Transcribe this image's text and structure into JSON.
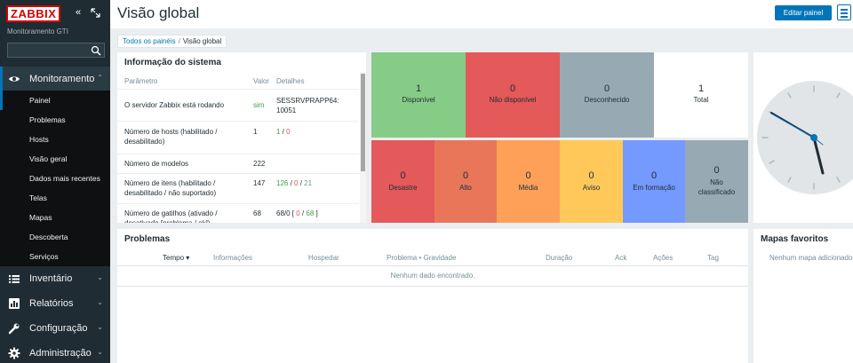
{
  "sidebar": {
    "logo": "ZABBIX",
    "server_name": "Monitoramento GTI",
    "search_value": "",
    "sections": [
      {
        "label": "Monitoramento",
        "icon": "eye-icon"
      },
      {
        "label": "Inventário",
        "icon": "list-icon"
      },
      {
        "label": "Relatórios",
        "icon": "report-icon"
      },
      {
        "label": "Configuração",
        "icon": "wrench-icon"
      },
      {
        "label": "Administração",
        "icon": "gear-icon"
      }
    ],
    "submenu": [
      "Painel",
      "Problemas",
      "Hosts",
      "Visão geral",
      "Dados mais recentes",
      "Telas",
      "Mapas",
      "Descoberta",
      "Serviços"
    ]
  },
  "header": {
    "title": "Visão global",
    "edit_label": "Editar painel"
  },
  "breadcrumb": {
    "root": "Todos os painéis",
    "separator": "/",
    "current": "Visão global"
  },
  "sysinfo": {
    "title": "Informação do sistema",
    "headers": [
      "Parâmetro",
      "Valor",
      "Detalhes"
    ],
    "rows": [
      {
        "param": "O servidor Zabbix está rodando",
        "value": "sim",
        "details": "SESSRVPRAPP64: 10051"
      },
      {
        "param": "Número de hosts (habilitado / desabilitado)",
        "value": "1",
        "d1": "1",
        "d2": "0"
      },
      {
        "param": "Número de modelos",
        "value": "222"
      },
      {
        "param": "Número de itens (habilitado / desabilitado / não suportado)",
        "value": "147",
        "d1": "126",
        "d2": "0",
        "d3": "21"
      },
      {
        "param": "Número de gatilhos (ativado / desativado [problema / ok])",
        "value": "68",
        "d0": "68/0 [",
        "d1": "0",
        "d2": "68",
        "d_end": "]"
      }
    ]
  },
  "host_status": [
    {
      "count": "1",
      "label": "Disponível",
      "color": "#86cc86"
    },
    {
      "count": "0",
      "label": "Não disponível",
      "color": "#e45959"
    },
    {
      "count": "0",
      "label": "Desconhecido",
      "color": "#97aab3"
    },
    {
      "count": "1",
      "label": "Total",
      "color": "#ffffff"
    }
  ],
  "problem_severity": [
    {
      "count": "0",
      "label": "Desastre",
      "color": "#e45959"
    },
    {
      "count": "0",
      "label": "Alto",
      "color": "#e97659"
    },
    {
      "count": "0",
      "label": "Média",
      "color": "#ffa059"
    },
    {
      "count": "0",
      "label": "Aviso",
      "color": "#ffc859"
    },
    {
      "count": "0",
      "label": "Em formação",
      "color": "#7499ff"
    },
    {
      "count": "0",
      "label": "Não classificado",
      "color": "#97aab3"
    }
  ],
  "problems": {
    "title": "Problemas",
    "columns": [
      "Tempo ▾",
      "Informações",
      "Hospedar",
      "Problema • Gravidade",
      "Duração",
      "Ack",
      "Ações",
      "Tag"
    ],
    "empty": "Nenhum dado encontrado."
  },
  "fav_maps": {
    "title": "Mapas favoritos",
    "empty": "Nenhum mapa adicionado."
  },
  "colors": {
    "accent": "#0275b8",
    "sidebar": "#1f2c33",
    "brand": "#d40000"
  }
}
